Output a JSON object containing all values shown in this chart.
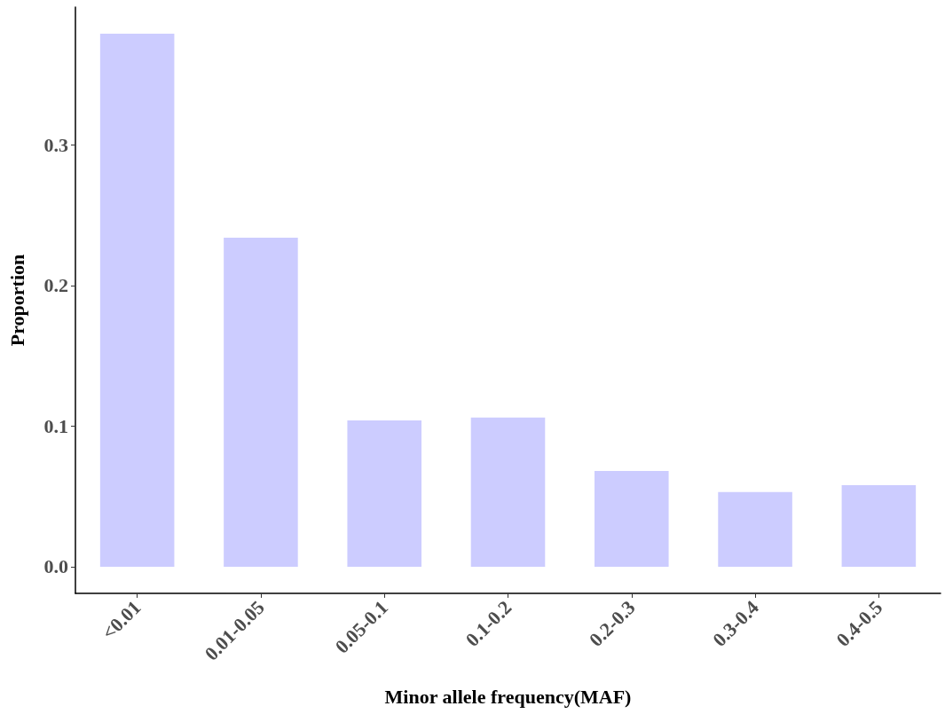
{
  "chart_data": {
    "type": "bar",
    "xlabel": "Minor allele frequency(MAF)",
    "ylabel": "Proportion",
    "categories": [
      "<0.01",
      "0.01-0.05",
      "0.05-0.1",
      "0.1-0.2",
      "0.2-0.3",
      "0.3-0.4",
      "0.4-0.5"
    ],
    "values": [
      0.379,
      0.234,
      0.104,
      0.106,
      0.068,
      0.053,
      0.058
    ],
    "color": "#ccccff",
    "ylim": [
      -0.019,
      0.398
    ],
    "yticks": [
      {
        "value": 0,
        "label": "0.0"
      },
      0.1,
      0.2,
      0.3
    ],
    "grid": false
  }
}
